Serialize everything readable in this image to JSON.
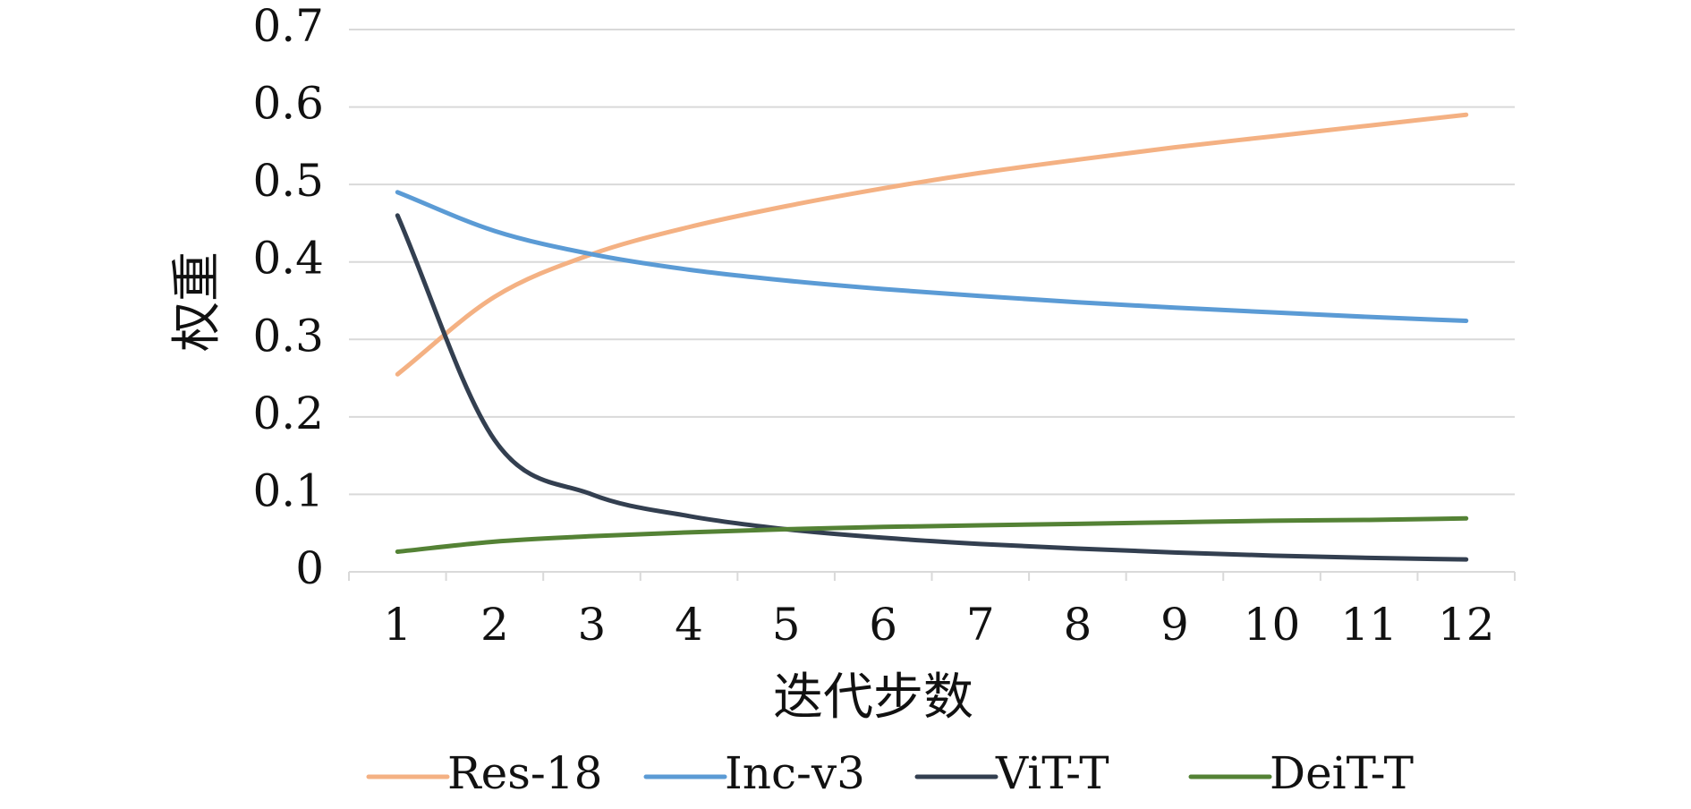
{
  "chart_data": {
    "type": "line",
    "title": "",
    "xlabel": "迭代步数",
    "ylabel": "权重",
    "x": [
      1,
      2,
      3,
      4,
      5,
      6,
      7,
      8,
      9,
      10,
      11,
      12
    ],
    "x_tick_labels": [
      "1",
      "2",
      "3",
      "4",
      "5",
      "6",
      "7",
      "8",
      "9",
      "10",
      "11",
      "12"
    ],
    "y_tick_labels": [
      "0",
      "0.1",
      "0.2",
      "0.3",
      "0.4",
      "0.5",
      "0.6",
      "0.7"
    ],
    "ylim": [
      0,
      0.7
    ],
    "grid": "horizontal",
    "legend_position": "bottom",
    "series": [
      {
        "name": "Res-18",
        "color": "#F4B183",
        "values": [
          0.255,
          0.355,
          0.41,
          0.445,
          0.472,
          0.495,
          0.515,
          0.532,
          0.548,
          0.562,
          0.576,
          0.59
        ]
      },
      {
        "name": "Inc-v3",
        "color": "#5B9BD5",
        "values": [
          0.49,
          0.44,
          0.41,
          0.39,
          0.376,
          0.365,
          0.356,
          0.348,
          0.341,
          0.335,
          0.329,
          0.324
        ]
      },
      {
        "name": "ViT-T",
        "color": "#333F50",
        "values": [
          0.46,
          0.17,
          0.1,
          0.072,
          0.055,
          0.044,
          0.036,
          0.03,
          0.025,
          0.021,
          0.018,
          0.016
        ]
      },
      {
        "name": "DeiT-T",
        "color": "#548235",
        "values": [
          0.026,
          0.039,
          0.046,
          0.051,
          0.055,
          0.058,
          0.06,
          0.062,
          0.064,
          0.066,
          0.067,
          0.069
        ]
      }
    ]
  }
}
